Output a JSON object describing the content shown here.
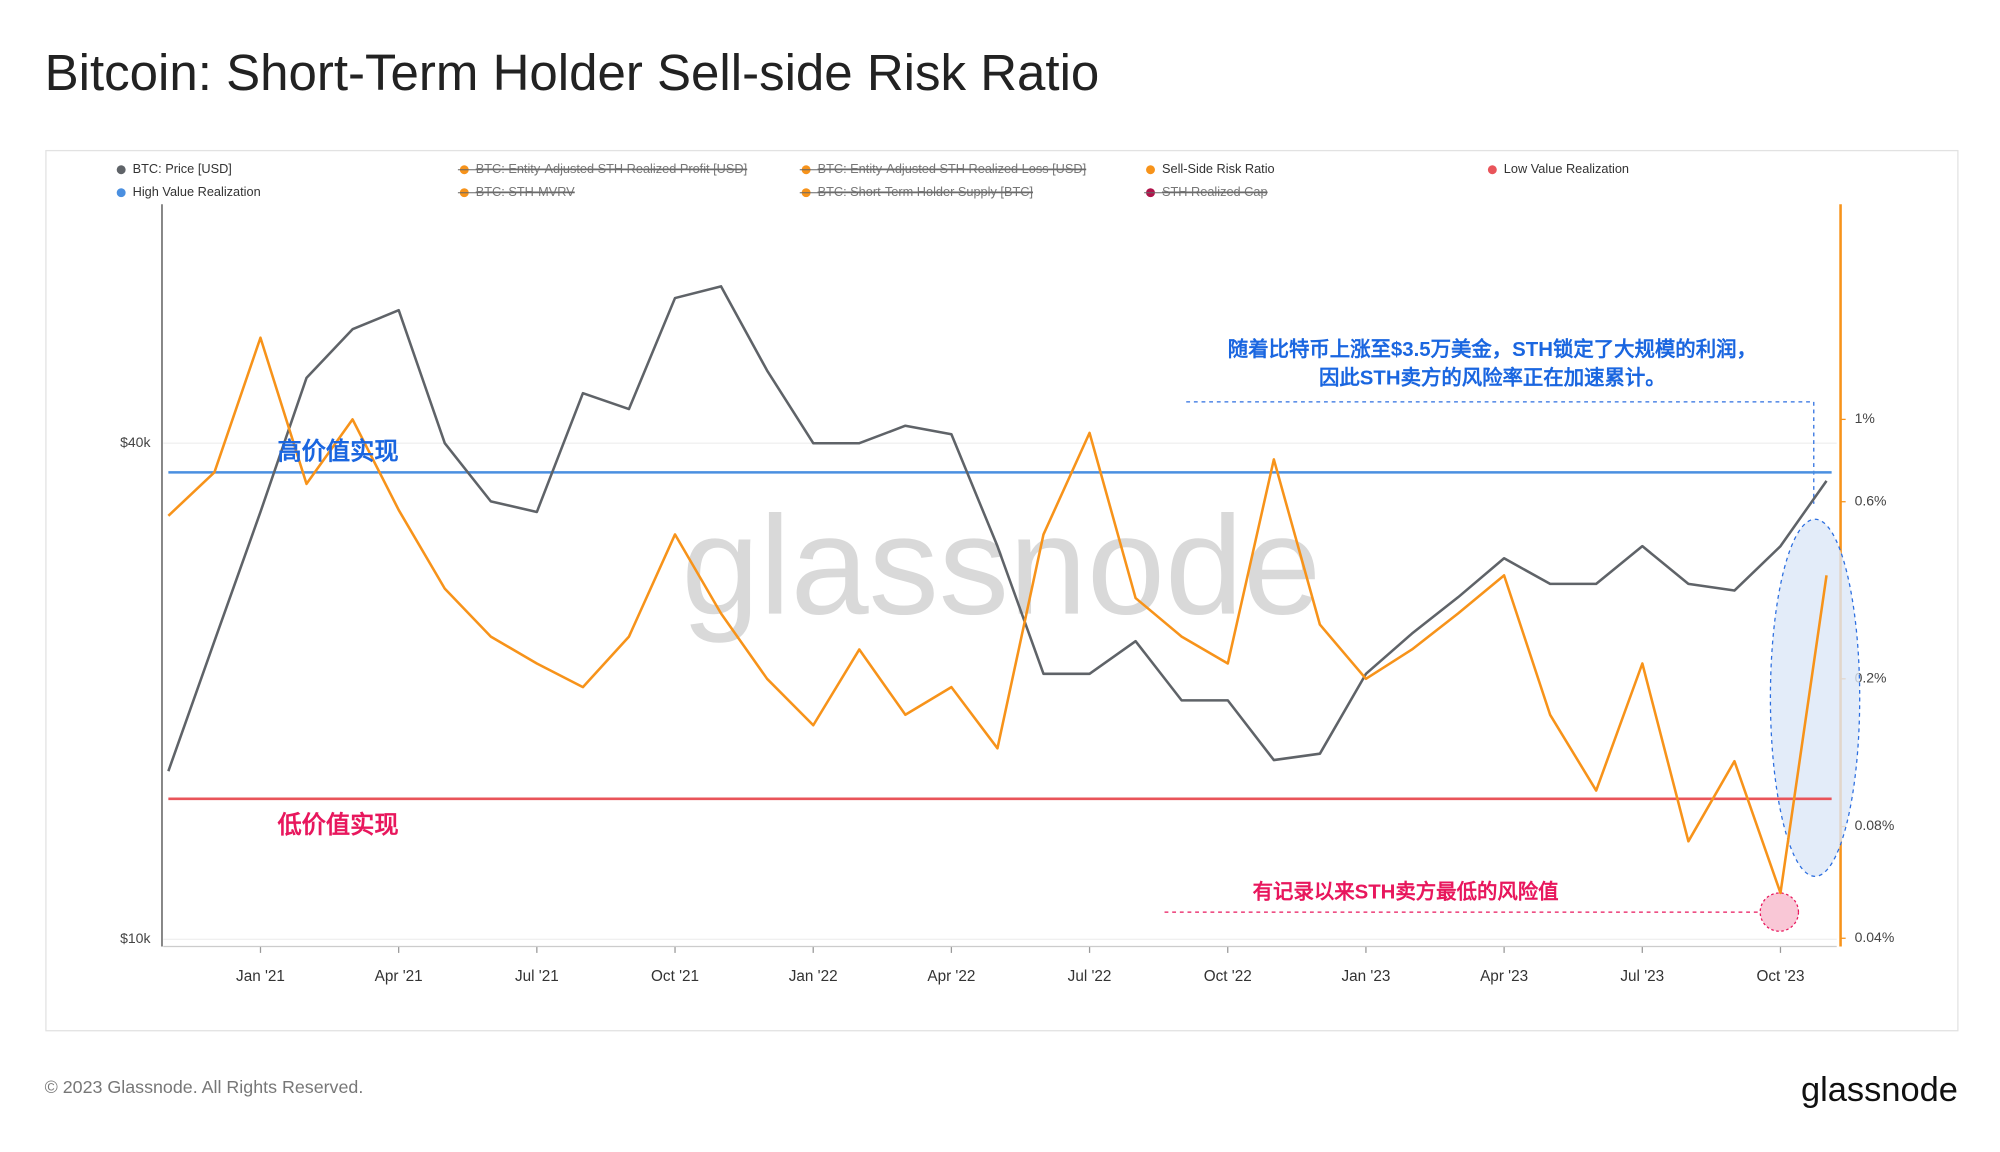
{
  "chart_data": {
    "type": "line",
    "title": "Bitcoin: Short-Term Holder Sell-side Risk Ratio",
    "x": [
      "2020-11",
      "2020-12",
      "2021-01",
      "2021-02",
      "2021-03",
      "2021-04",
      "2021-05",
      "2021-06",
      "2021-07",
      "2021-08",
      "2021-09",
      "2021-10",
      "2021-11",
      "2021-12",
      "2022-01",
      "2022-02",
      "2022-03",
      "2022-04",
      "2022-05",
      "2022-06",
      "2022-07",
      "2022-08",
      "2022-09",
      "2022-10",
      "2022-11",
      "2022-12",
      "2023-01",
      "2023-02",
      "2023-03",
      "2023-04",
      "2023-05",
      "2023-06",
      "2023-07",
      "2023-08",
      "2023-09",
      "2023-10",
      "2023-11"
    ],
    "xticks": [
      {
        "value": "2021-01",
        "label": "Jan '21"
      },
      {
        "value": "2021-04",
        "label": "Apr '21"
      },
      {
        "value": "2021-07",
        "label": "Jul '21"
      },
      {
        "value": "2021-10",
        "label": "Oct '21"
      },
      {
        "value": "2022-01",
        "label": "Jan '22"
      },
      {
        "value": "2022-04",
        "label": "Apr '22"
      },
      {
        "value": "2022-07",
        "label": "Jul '22"
      },
      {
        "value": "2022-10",
        "label": "Oct '22"
      },
      {
        "value": "2023-01",
        "label": "Jan '23"
      },
      {
        "value": "2023-04",
        "label": "Apr '23"
      },
      {
        "value": "2023-07",
        "label": "Jul '23"
      },
      {
        "value": "2023-10",
        "label": "Oct '23"
      }
    ],
    "log_scale": true,
    "ylim": [
      9800,
      78000
    ],
    "yticks": [
      {
        "value": 10000,
        "label": "$10k"
      },
      {
        "value": 40000,
        "label": "$40k"
      }
    ],
    "y2lim": [
      0.038,
      3.8
    ],
    "y2ticks": [
      {
        "value": 0.04,
        "label": "0.04%"
      },
      {
        "value": 0.08,
        "label": "0.08%"
      },
      {
        "value": 0.2,
        "label": "0.2%"
      },
      {
        "value": 0.6,
        "label": "0.6%"
      },
      {
        "value": 1,
        "label": "1%"
      }
    ],
    "series": [
      {
        "name": "BTC: Price [USD]",
        "color": "#5f6368",
        "values": [
          16000,
          23000,
          33000,
          48000,
          55000,
          58000,
          40000,
          34000,
          33000,
          46000,
          44000,
          60000,
          62000,
          49000,
          40000,
          40000,
          42000,
          41000,
          30000,
          21000,
          21000,
          23000,
          19500,
          19500,
          16500,
          16800,
          21000,
          23500,
          26000,
          29000,
          27000,
          27000,
          30000,
          27000,
          26500,
          30000,
          36000
        ]
      },
      {
        "name": "Sell-Side Risk Ratio",
        "color": "#f7931a",
        "axis": "y2",
        "values": [
          0.55,
          0.72,
          1.66,
          0.67,
          1.0,
          0.57,
          0.35,
          0.26,
          0.22,
          0.19,
          0.26,
          0.49,
          0.3,
          0.2,
          0.15,
          0.24,
          0.16,
          0.19,
          0.13,
          0.49,
          0.92,
          0.33,
          0.26,
          0.22,
          0.78,
          0.28,
          0.2,
          0.24,
          0.3,
          0.38,
          0.16,
          0.1,
          0.22,
          0.073,
          0.12,
          0.053,
          0.38
        ]
      }
    ],
    "reference_lines": [
      {
        "name": "High Value Realization",
        "color": "#4a8fe0",
        "axis": "y2",
        "value": 0.72
      },
      {
        "name": "Low Value Realization",
        "color": "#e9545a",
        "axis": "y2",
        "value": 0.095
      }
    ],
    "disabled_legend": [
      {
        "name": "BTC: Entity-Adjusted STH Realized Profit [USD]",
        "color": "#f7931a"
      },
      {
        "name": "BTC: Entity-Adjusted STH Realized Loss [USD]",
        "color": "#f7931a"
      },
      {
        "name": "BTC: STH-MVRV",
        "color": "#f7931a"
      },
      {
        "name": "BTC: Short-Term Holder Supply [BTC]",
        "color": "#f7931a"
      },
      {
        "name": "STH Realized Cap",
        "color": "#b0134a"
      }
    ],
    "annotations": [
      "随着比特币上涨至$3.5万美金，STH锁定了大规模的利润，",
      "因此STH卖方的风险率正在加速累计。",
      "高价值实现",
      "低价值实现",
      "有记录以来STH卖方最低的风险值"
    ],
    "watermark": "glassnode"
  },
  "footer": {
    "copyright": "© 2023 Glassnode. All Rights Reserved.",
    "logo": "glassnode"
  }
}
